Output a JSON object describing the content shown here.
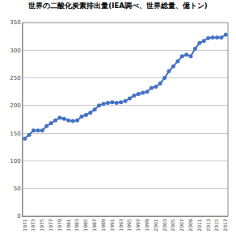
{
  "chart_data": {
    "type": "line",
    "title": "世界の二酸化炭素排出量(IEA調べ、世界総量、億トン)",
    "categories": [
      "1971",
      null,
      "1973",
      null,
      "1975",
      null,
      "1977",
      null,
      "1979",
      null,
      "1981",
      null,
      "1983",
      null,
      "1985",
      null,
      "1987",
      null,
      "1989",
      null,
      "1991",
      null,
      "1993",
      null,
      "1995",
      null,
      "1997",
      null,
      "1999",
      null,
      "2001",
      null,
      "2003",
      null,
      "2005",
      null,
      "2007",
      null,
      "2009",
      null,
      "2011",
      null,
      "2013",
      null,
      "2015",
      null,
      "2017"
    ],
    "values": [
      140,
      147,
      155,
      155,
      155,
      163,
      168,
      173,
      178,
      176,
      173,
      172,
      173,
      180,
      183,
      187,
      193,
      200,
      203,
      205,
      206,
      205,
      206,
      208,
      213,
      218,
      221,
      223,
      225,
      232,
      234,
      240,
      250,
      262,
      271,
      280,
      289,
      292,
      289,
      303,
      313,
      317,
      322,
      323,
      323,
      323,
      328
    ],
    "color": "#4472c4",
    "marker": "circle",
    "ylim": [
      0,
      350
    ],
    "yticks": [
      0,
      50,
      100,
      150,
      200,
      250,
      300,
      350
    ],
    "grid": true
  }
}
